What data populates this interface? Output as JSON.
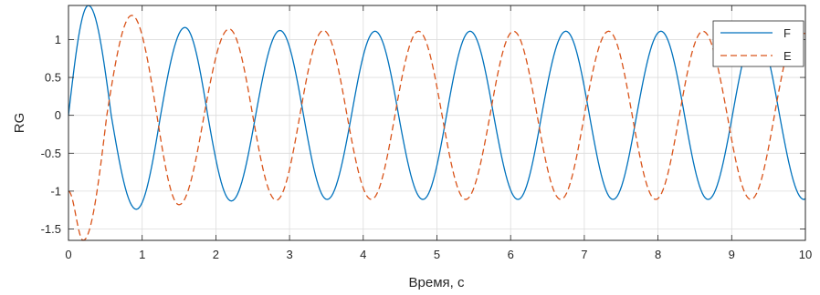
{
  "chart_data": {
    "type": "line",
    "xlabel": "Время, с",
    "ylabel": "RG",
    "xlim": [
      0,
      10
    ],
    "ylim": [
      -1.65,
      1.45
    ],
    "xticks": [
      "0",
      "1",
      "2",
      "3",
      "4",
      "5",
      "6",
      "7",
      "8",
      "9",
      "10"
    ],
    "yticks": [
      "-1.5",
      "-1",
      "-0.5",
      "0",
      "0.5",
      "1"
    ],
    "grid": true,
    "legend_position": "top-right",
    "series": [
      {
        "name": "F",
        "color": "#0072BD",
        "dash": "solid",
        "x": [
          0,
          0.27,
          0.58,
          0.92,
          1.25,
          1.58,
          1.89,
          2.21,
          2.54,
          2.87,
          3.19,
          3.51,
          3.84,
          4.16,
          4.48,
          4.81,
          5.13,
          5.45,
          5.77,
          6.1,
          6.42,
          6.75,
          7.07,
          7.39,
          7.71,
          8.04,
          8.36,
          8.68,
          9.01,
          9.33,
          9.65,
          9.98,
          10
        ],
        "y": [
          0,
          1.45,
          0,
          -1.24,
          0,
          1.16,
          0,
          -1.13,
          0,
          1.12,
          0,
          -1.11,
          0,
          1.11,
          0,
          -1.11,
          0,
          1.11,
          0,
          -1.11,
          0,
          1.11,
          0,
          -1.11,
          0,
          1.11,
          0,
          -1.11,
          0,
          1.11,
          0,
          -1.11,
          -1.1
        ]
      },
      {
        "name": "E",
        "color": "#D95319",
        "dash": "dashed",
        "x": [
          0,
          0.2,
          0.52,
          0.86,
          1.2,
          1.5,
          1.84,
          2.18,
          2.5,
          2.82,
          3.14,
          3.46,
          3.78,
          4.11,
          4.43,
          4.75,
          5.07,
          5.39,
          5.72,
          6.04,
          6.36,
          6.68,
          7.0,
          7.33,
          7.65,
          7.97,
          8.29,
          8.61,
          8.94,
          9.26,
          9.58,
          9.9,
          10
        ],
        "y": [
          -1.0,
          -1.65,
          0,
          1.32,
          0,
          -1.18,
          0,
          1.14,
          0,
          -1.12,
          0,
          1.12,
          0,
          -1.11,
          0,
          1.11,
          0,
          -1.11,
          0,
          1.11,
          0,
          -1.11,
          0,
          1.11,
          0,
          -1.11,
          0,
          1.11,
          0,
          -1.11,
          0,
          1.11,
          1.08
        ]
      }
    ]
  }
}
